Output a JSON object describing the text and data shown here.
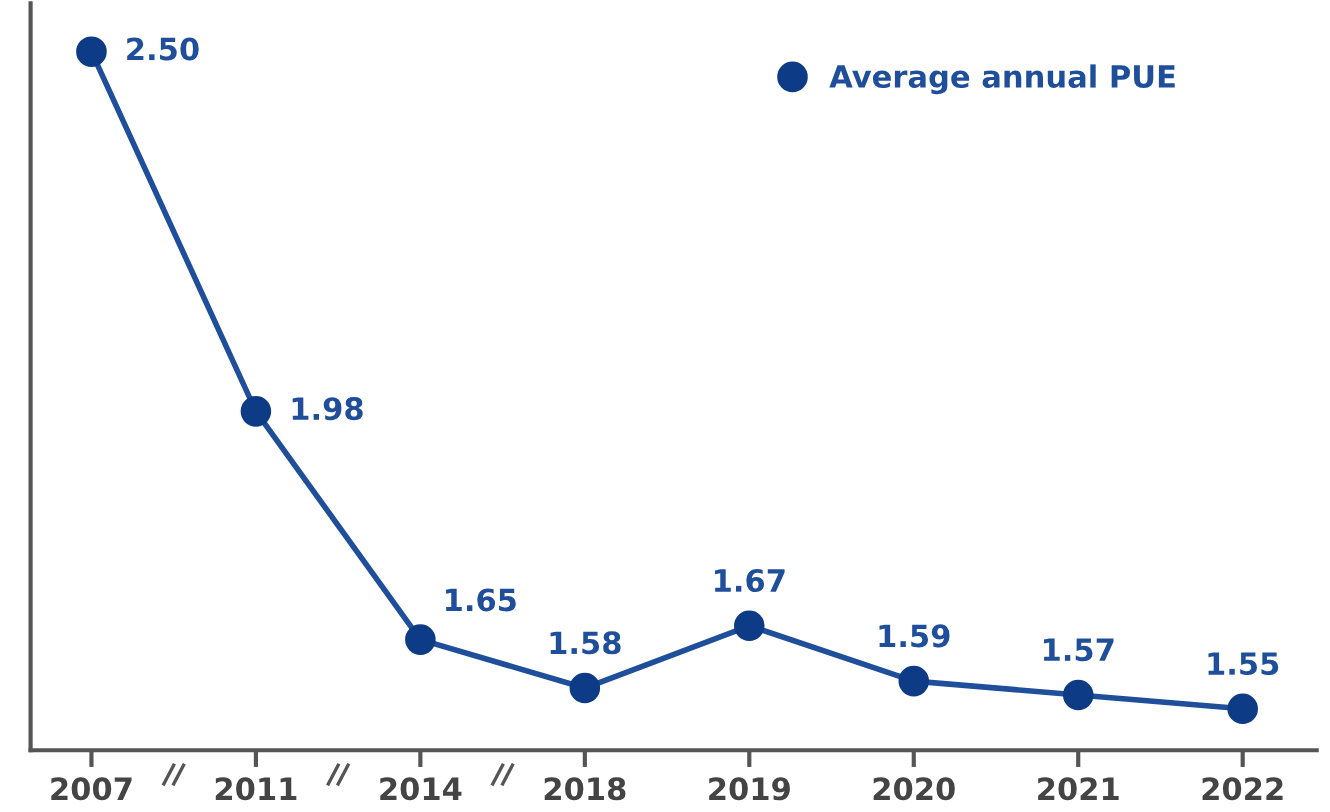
{
  "chart_data": {
    "type": "line",
    "categories": [
      "2007",
      "2011",
      "2014",
      "2018",
      "2019",
      "2020",
      "2021",
      "2022"
    ],
    "series": [
      {
        "name": "Average annual PUE",
        "color": "#1f4f9a",
        "values": [
          2.5,
          1.98,
          1.65,
          1.58,
          1.67,
          1.59,
          1.57,
          1.55
        ],
        "value_labels": [
          "2.50",
          "1.98",
          "1.65",
          "1.58",
          "1.67",
          "1.59",
          "1.57",
          "1.55"
        ]
      }
    ],
    "ylim": [
      1.49,
      2.57
    ],
    "marker": "circle",
    "line_style": "solid",
    "legend": "top",
    "grid": false,
    "tick_labels": "x"
  }
}
